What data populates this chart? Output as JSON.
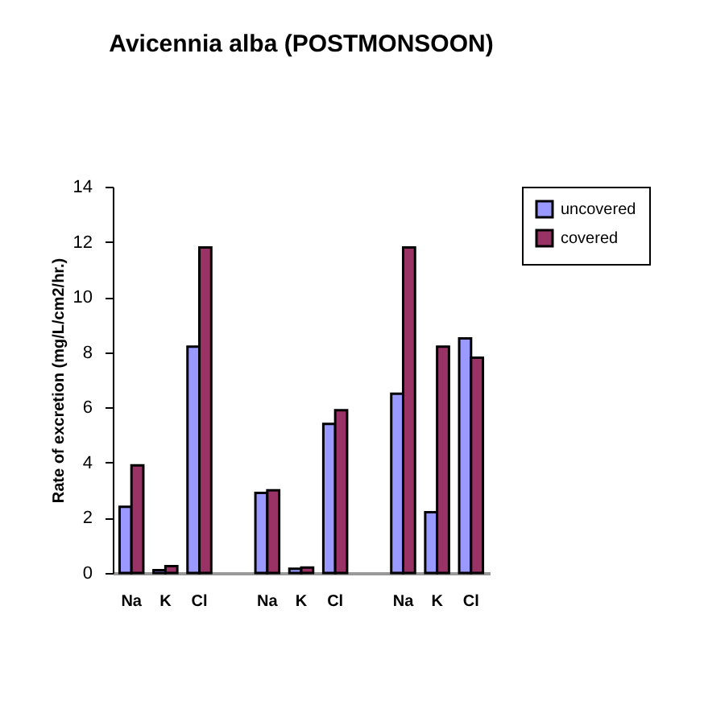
{
  "chart_data": {
    "type": "bar",
    "title": "Avicennia alba (POSTMONSOON)",
    "ylabel": "Rate of excretion (mg/L/cm2/hr.)",
    "categories": [
      "Na",
      "K",
      "Cl",
      null,
      "Na",
      "K",
      "Cl",
      null,
      "Na",
      "K",
      "Cl"
    ],
    "series": [
      {
        "name": "uncovered",
        "color": "#9999ff",
        "values": [
          2.4,
          0.1,
          8.2,
          null,
          2.9,
          0.15,
          5.4,
          null,
          6.5,
          2.2,
          8.5
        ]
      },
      {
        "name": "covered",
        "color": "#993366",
        "values": [
          3.9,
          0.25,
          11.8,
          null,
          3.0,
          0.2,
          5.9,
          null,
          11.8,
          8.2,
          7.8
        ]
      }
    ],
    "ylim": [
      0,
      14
    ],
    "yticks": [
      0,
      2,
      4,
      6,
      8,
      10,
      12,
      14
    ],
    "grid": false,
    "legend": "right"
  }
}
